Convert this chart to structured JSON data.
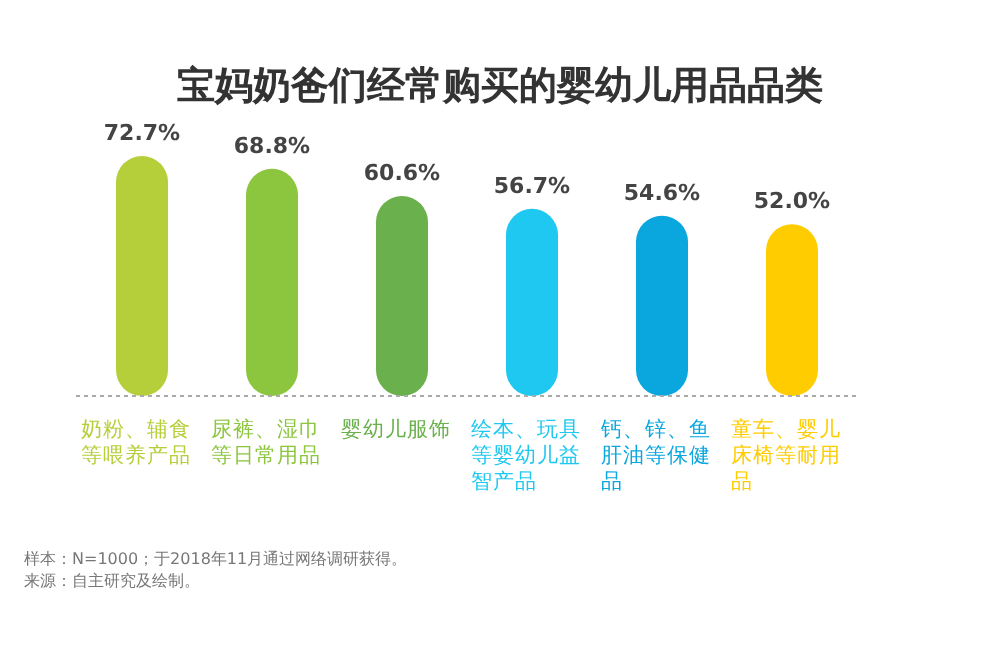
{
  "chart_data": {
    "type": "bar",
    "title": "宝妈奶爸们经常购买的婴幼儿用品品类",
    "categories": [
      "奶粉、辅食等喂养产品",
      "尿裤、湿巾等日常用品",
      "婴幼儿服饰",
      "绘本、玩具等婴幼儿益智产品",
      "钙、锌、鱼肝油等保健品",
      "童车、婴儿床椅等耐用品"
    ],
    "values": [
      72.7,
      68.8,
      60.6,
      56.7,
      54.6,
      52.0
    ],
    "colors": [
      "#b5cf3a",
      "#8cc63f",
      "#6ab04c",
      "#1ec8f0",
      "#0aa6de",
      "#ffcc00"
    ],
    "value_labels": [
      "72.7%",
      "68.8%",
      "60.6%",
      "56.7%",
      "54.6%",
      "52.0%"
    ],
    "tick_labels": "x",
    "annotations": [
      "样本：N=1000；于2018年11月通过网络调研获得。",
      "来源：自主研究及绘制。"
    ]
  }
}
